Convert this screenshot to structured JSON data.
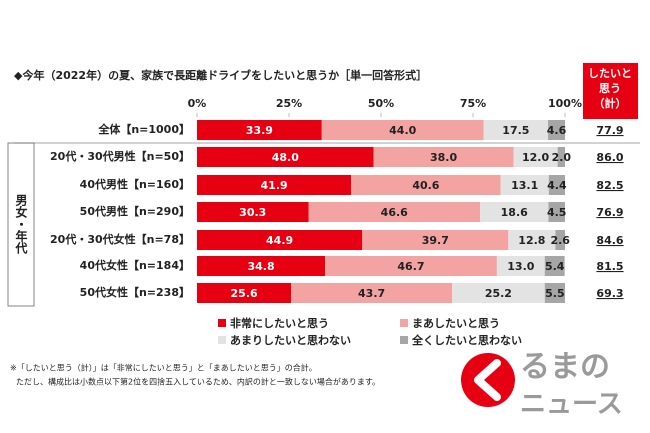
{
  "chart_data": {
    "type": "stacked-bar-horizontal",
    "title": "◆今年（2022年）の夏、家族で長距離ドライブをしたいと思うか［単一回答形式］",
    "categories": [
      "全体【n=1000】",
      "20代・30代男性【n=50】",
      "40代男性【n=160】",
      "50代男性【n=290】",
      "20代・30代女性【n=78】",
      "40代女性【n=184】",
      "50代女性【n=238】"
    ],
    "group_label": "男女・年代",
    "series": [
      {
        "name": "非常にしたいと思う",
        "color": "#e60012",
        "label_color": "#ffffff",
        "values": [
          33.9,
          48.0,
          41.9,
          30.3,
          44.9,
          34.8,
          25.6
        ],
        "value_labels": [
          "33.9",
          "48.0",
          "41.9",
          "30.3",
          "44.9",
          "34.8",
          "25.6"
        ]
      },
      {
        "name": "まあしたいと思う",
        "color": "#f4a3a3",
        "label_color": "#222222",
        "values": [
          44.0,
          38.0,
          40.6,
          46.6,
          39.7,
          46.7,
          43.7
        ],
        "value_labels": [
          "44.0",
          "38.0",
          "40.6",
          "46.6",
          "39.7",
          "46.7",
          "43.7"
        ]
      },
      {
        "name": "あまりしたいと思わない",
        "color": "#e3e3e3",
        "label_color": "#222222",
        "values": [
          17.5,
          12.0,
          13.1,
          18.6,
          12.8,
          13.0,
          25.2
        ],
        "value_labels": [
          "17.5",
          "12.0",
          "13.1",
          "18.6",
          "12.8",
          "13.0",
          "25.2"
        ]
      },
      {
        "name": "全くしたいと思わない",
        "color": "#a6a6a6",
        "label_color": "#222222",
        "values": [
          4.6,
          2.0,
          4.4,
          4.5,
          2.6,
          5.4,
          5.5
        ],
        "value_labels": [
          "4.6",
          "2.0",
          "4.4",
          "4.5",
          "2.6",
          "5.4",
          "5.5"
        ]
      }
    ],
    "xlim": [
      0,
      100
    ],
    "xticks": [
      {
        "value": 0,
        "label": "0%"
      },
      {
        "value": 25,
        "label": "25%"
      },
      {
        "value": 50,
        "label": "50%"
      },
      {
        "value": 75,
        "label": "75%"
      },
      {
        "value": 100,
        "label": "100%"
      }
    ],
    "totals": {
      "title": [
        "したいと",
        "思う",
        "（計）"
      ],
      "values": [
        77.9,
        86.0,
        82.5,
        76.9,
        84.6,
        81.5,
        69.3
      ],
      "value_labels": [
        "77.9",
        "86.0",
        "82.5",
        "76.9",
        "84.6",
        "81.5",
        "69.3"
      ]
    },
    "notes": [
      "※「したいと思う（計）」は「非常にしたいと思う」と「まあしたいと思う」の合計。",
      "ただし、構成比は小数点以下第2位を四捨五入しているため、内訳の計と一致しない場合があります。"
    ],
    "logo": [
      "るまの",
      "ニュース"
    ]
  }
}
